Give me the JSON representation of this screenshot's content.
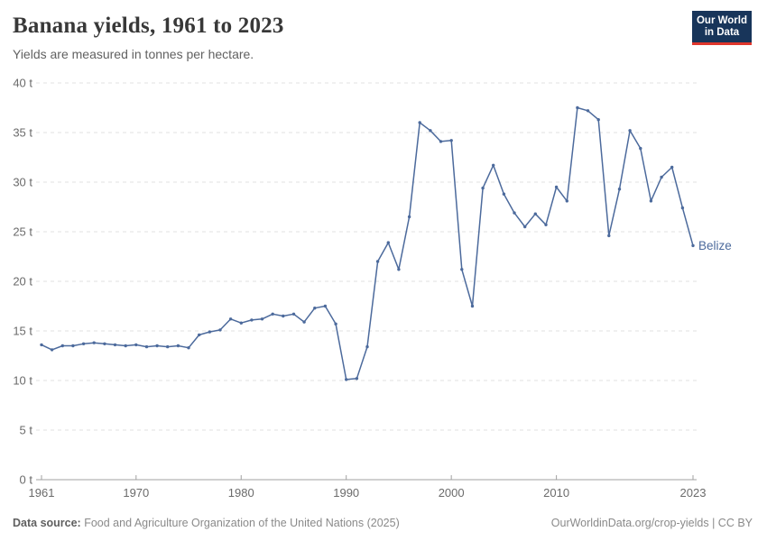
{
  "header": {
    "title": "Banana yields, 1961 to 2023",
    "subtitle": "Yields are measured in tonnes per hectare."
  },
  "logo": {
    "line1": "Our World",
    "line2": "in Data",
    "bg_color": "#18355a",
    "accent_color": "#e0362c",
    "text_color": "#ffffff"
  },
  "chart_data": {
    "type": "line",
    "title": "Banana yields, 1961 to 2023",
    "ylabel": "tonnes per hectare",
    "xlabel": "",
    "xlim": [
      1961,
      2023
    ],
    "ylim": [
      0,
      40
    ],
    "grid": true,
    "x_ticks": [
      1961,
      1970,
      1980,
      1990,
      2000,
      2010,
      2023
    ],
    "y_ticks": [
      0,
      5,
      10,
      15,
      20,
      25,
      30,
      35,
      40
    ],
    "y_tick_suffix": " t",
    "legend_position": "line-end",
    "series": [
      {
        "name": "Belize",
        "color": "#4c6a9c",
        "x": [
          1961,
          1962,
          1963,
          1964,
          1965,
          1966,
          1967,
          1968,
          1969,
          1970,
          1971,
          1972,
          1973,
          1974,
          1975,
          1976,
          1977,
          1978,
          1979,
          1980,
          1981,
          1982,
          1983,
          1984,
          1985,
          1986,
          1987,
          1988,
          1989,
          1990,
          1991,
          1992,
          1993,
          1994,
          1995,
          1996,
          1997,
          1998,
          1999,
          2000,
          2001,
          2002,
          2003,
          2004,
          2005,
          2006,
          2007,
          2008,
          2009,
          2010,
          2011,
          2012,
          2013,
          2014,
          2015,
          2016,
          2017,
          2018,
          2019,
          2020,
          2021,
          2022,
          2023
        ],
        "values": [
          13.6,
          13.1,
          13.5,
          13.5,
          13.7,
          13.8,
          13.7,
          13.6,
          13.5,
          13.6,
          13.4,
          13.5,
          13.4,
          13.5,
          13.3,
          14.6,
          14.9,
          15.1,
          16.2,
          15.8,
          16.1,
          16.2,
          16.7,
          16.5,
          16.7,
          15.9,
          17.3,
          17.5,
          15.7,
          10.1,
          10.2,
          13.4,
          22.0,
          23.9,
          21.2,
          26.5,
          36.0,
          35.2,
          34.1,
          34.2,
          21.2,
          17.5,
          29.4,
          31.7,
          28.8,
          26.9,
          25.5,
          26.8,
          25.7,
          29.5,
          28.1,
          37.5,
          37.2,
          36.3,
          24.6,
          29.3,
          35.2,
          33.4,
          28.1,
          30.5,
          31.5,
          27.4,
          23.6
        ]
      }
    ]
  },
  "footer": {
    "source_label": "Data source:",
    "source_text": "Food and Agriculture Organization of the United Nations (2025)",
    "citation": "OurWorldinData.org/crop-yields | CC BY"
  },
  "colors": {
    "line": "#4c6a9c",
    "grid": "#e2e2e2",
    "axis": "#a1a1a1",
    "tick_label": "#6b6b6b",
    "title": "#383838",
    "subtitle": "#616161",
    "footer": "#8a8a8a"
  }
}
